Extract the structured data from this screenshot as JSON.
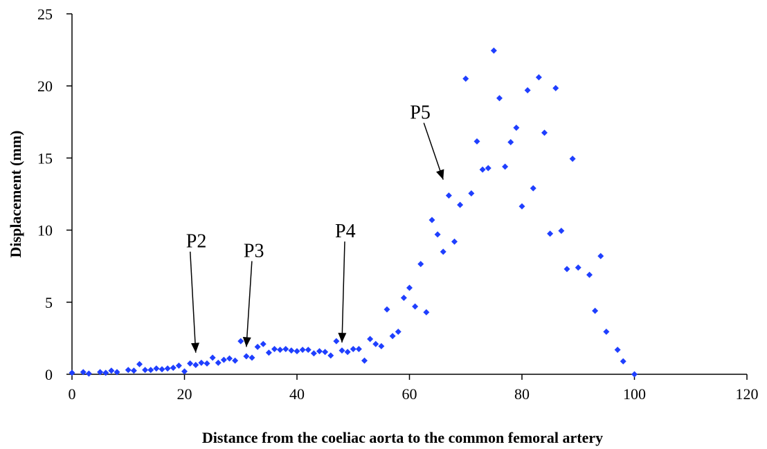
{
  "chart_data": {
    "type": "scatter",
    "title": "",
    "xlabel": "Distance from the coeliac aorta to the common femoral artery",
    "ylabel": "Displacement (mm)",
    "xlim": [
      0,
      120
    ],
    "ylim": [
      0,
      25
    ],
    "x_ticks": [
      "0",
      "20",
      "40",
      "60",
      "80",
      "100",
      "120"
    ],
    "y_ticks": [
      "0",
      "5",
      "10",
      "15",
      "20",
      "25"
    ],
    "grid": false,
    "legend": "none",
    "marker": "diamond",
    "color": "#1f3fff",
    "series": [
      {
        "x": [
          0,
          2,
          3,
          5,
          6,
          7,
          8,
          10,
          11,
          12,
          13,
          14,
          15,
          16,
          17,
          18,
          19,
          20,
          21,
          22,
          23,
          24,
          25,
          26,
          27,
          28,
          29,
          30,
          31,
          32,
          33,
          34,
          35,
          36,
          37,
          38,
          39,
          40,
          41,
          42,
          43,
          44,
          45,
          46,
          47,
          48,
          49,
          50,
          51,
          52,
          53,
          54,
          55,
          56,
          57,
          58,
          59,
          60,
          61,
          62,
          63,
          64,
          65,
          66,
          67,
          68,
          69,
          70,
          71,
          72,
          73,
          74,
          75,
          76,
          77,
          78,
          79,
          80,
          81,
          82,
          83,
          84,
          85,
          86,
          87,
          88,
          89,
          90,
          92,
          93,
          94,
          95,
          97,
          98,
          100
        ],
        "y": [
          0.1,
          0.15,
          0.05,
          0.15,
          0.1,
          0.25,
          0.15,
          0.3,
          0.25,
          0.7,
          0.3,
          0.3,
          0.4,
          0.35,
          0.4,
          0.45,
          0.6,
          0.2,
          0.75,
          0.65,
          0.8,
          0.75,
          1.15,
          0.8,
          1.0,
          1.1,
          0.95,
          2.3,
          1.25,
          1.15,
          1.9,
          2.1,
          1.5,
          1.75,
          1.7,
          1.75,
          1.65,
          1.6,
          1.7,
          1.7,
          1.45,
          1.6,
          1.55,
          1.3,
          2.3,
          1.65,
          1.55,
          1.75,
          1.75,
          0.95,
          2.45,
          2.1,
          1.95,
          4.5,
          2.65,
          2.95,
          5.3,
          6.0,
          4.7,
          7.65,
          4.3,
          10.7,
          9.7,
          8.5,
          12.4,
          9.2,
          11.75,
          20.5,
          12.55,
          16.15,
          14.2,
          14.3,
          22.45,
          19.15,
          14.4,
          16.1,
          17.1,
          11.65,
          19.7,
          12.9,
          20.6,
          16.75,
          9.75,
          19.85,
          9.95,
          7.3,
          14.95,
          7.4,
          6.9,
          4.4,
          8.2,
          2.95,
          1.7,
          0.9,
          0.0
        ]
      }
    ],
    "annotations": [
      {
        "text": "P2",
        "x": 22,
        "y": 1.5
      },
      {
        "text": "P3",
        "x": 31,
        "y": 1.9
      },
      {
        "text": "P4",
        "x": 48,
        "y": 2.2
      },
      {
        "text": "P5",
        "x": 66,
        "y": 13.5
      }
    ]
  }
}
